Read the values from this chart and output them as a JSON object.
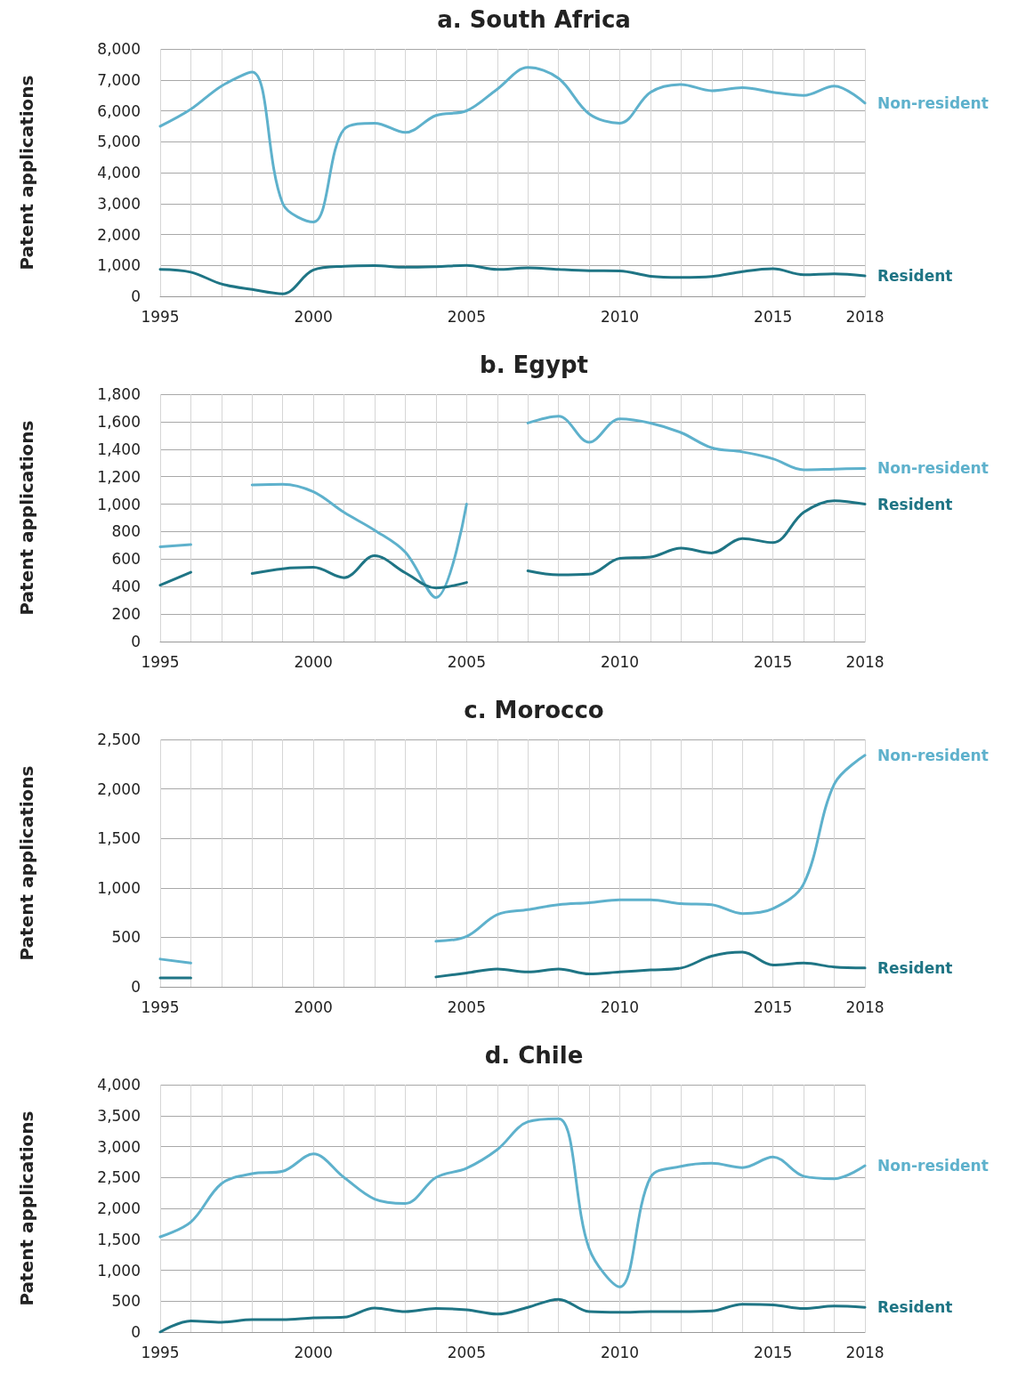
{
  "chart_data": [
    {
      "type": "line",
      "title": "a. South Africa",
      "ylabel": "Patent applications",
      "x": [
        1995,
        1996,
        1997,
        1998,
        1999,
        2000,
        2001,
        2002,
        2003,
        2004,
        2005,
        2006,
        2007,
        2008,
        2009,
        2010,
        2011,
        2012,
        2013,
        2014,
        2015,
        2016,
        2017,
        2018
      ],
      "xlim": [
        1995,
        2018
      ],
      "xticks": [
        1995,
        {
          "value": 1996,
          "label": null
        },
        {
          "value": 1997,
          "label": null
        },
        {
          "value": 1998,
          "label": null
        },
        {
          "value": 1999,
          "label": null
        },
        2000,
        {
          "value": 2001,
          "label": null
        },
        {
          "value": 2002,
          "label": null
        },
        {
          "value": 2003,
          "label": null
        },
        {
          "value": 2004,
          "label": null
        },
        2005,
        {
          "value": 2006,
          "label": null
        },
        {
          "value": 2007,
          "label": null
        },
        {
          "value": 2008,
          "label": null
        },
        {
          "value": 2009,
          "label": null
        },
        2010,
        {
          "value": 2011,
          "label": null
        },
        {
          "value": 2012,
          "label": null
        },
        {
          "value": 2013,
          "label": null
        },
        {
          "value": 2014,
          "label": null
        },
        2015,
        {
          "value": 2016,
          "label": null
        },
        {
          "value": 2017,
          "label": null
        },
        2018
      ],
      "ylim": [
        0,
        8000
      ],
      "yticks": [
        0,
        {
          "value": 1000,
          "label": "1,000"
        },
        {
          "value": 2000,
          "label": "2,000"
        },
        {
          "value": 3000,
          "label": "3,000"
        },
        {
          "value": 4000,
          "label": "4,000"
        },
        {
          "value": 5000,
          "label": "5,000"
        },
        {
          "value": 6000,
          "label": "6,000"
        },
        {
          "value": 7000,
          "label": "7,000"
        },
        {
          "value": 8000,
          "label": "8,000"
        }
      ],
      "grid": true,
      "legend": false,
      "marker": "none",
      "line_style": "solid",
      "series": [
        {
          "name": "Non-resident",
          "color": "#5eb1cc",
          "values": [
            5500,
            6050,
            6800,
            7250,
            3000,
            2400,
            5400,
            5600,
            5300,
            5850,
            6000,
            6700,
            7400,
            7050,
            5900,
            5600,
            6600,
            6850,
            6650,
            6750,
            6600,
            6500,
            6800,
            6250
          ]
        },
        {
          "name": "Resident",
          "color": "#1f7585",
          "values": [
            870,
            780,
            400,
            220,
            80,
            850,
            970,
            990,
            940,
            960,
            1000,
            870,
            920,
            870,
            830,
            820,
            650,
            610,
            640,
            800,
            890,
            700,
            730,
            660
          ]
        }
      ]
    },
    {
      "type": "line",
      "title": "b. Egypt",
      "ylabel": "Patent applications",
      "x": [
        1995,
        1996,
        1997,
        1998,
        1999,
        2000,
        2001,
        2002,
        2003,
        2004,
        2005,
        2006,
        2007,
        2008,
        2009,
        2010,
        2011,
        2012,
        2013,
        2014,
        2015,
        2016,
        2017,
        2018
      ],
      "xlim": [
        1995,
        2018
      ],
      "xticks": [
        1995,
        {
          "value": 1996,
          "label": null
        },
        {
          "value": 1997,
          "label": null
        },
        {
          "value": 1998,
          "label": null
        },
        {
          "value": 1999,
          "label": null
        },
        2000,
        {
          "value": 2001,
          "label": null
        },
        {
          "value": 2002,
          "label": null
        },
        {
          "value": 2003,
          "label": null
        },
        {
          "value": 2004,
          "label": null
        },
        2005,
        {
          "value": 2006,
          "label": null
        },
        {
          "value": 2007,
          "label": null
        },
        {
          "value": 2008,
          "label": null
        },
        {
          "value": 2009,
          "label": null
        },
        2010,
        {
          "value": 2011,
          "label": null
        },
        {
          "value": 2012,
          "label": null
        },
        {
          "value": 2013,
          "label": null
        },
        {
          "value": 2014,
          "label": null
        },
        2015,
        {
          "value": 2016,
          "label": null
        },
        {
          "value": 2017,
          "label": null
        },
        2018
      ],
      "ylim": [
        0,
        1800
      ],
      "yticks": [
        0,
        200,
        400,
        600,
        800,
        {
          "value": 1000,
          "label": "1,000"
        },
        {
          "value": 1200,
          "label": "1,200"
        },
        {
          "value": 1400,
          "label": "1,400"
        },
        {
          "value": 1600,
          "label": "1,600"
        },
        {
          "value": 1800,
          "label": "1,800"
        }
      ],
      "grid": true,
      "legend": false,
      "marker": "none",
      "line_style": "solid",
      "series": [
        {
          "name": "Non-resident",
          "color": "#5eb1cc",
          "values": [
            690,
            705,
            null,
            1140,
            1145,
            1090,
            940,
            810,
            650,
            320,
            1000,
            null,
            1590,
            1640,
            1450,
            1620,
            1590,
            1520,
            1410,
            1380,
            1330,
            1250,
            1255,
            1260
          ]
        },
        {
          "name": "Resident",
          "color": "#1f7585",
          "values": [
            410,
            505,
            null,
            495,
            530,
            540,
            465,
            625,
            500,
            390,
            430,
            null,
            515,
            485,
            490,
            605,
            615,
            680,
            645,
            750,
            720,
            940,
            1025,
            1000
          ]
        }
      ]
    },
    {
      "type": "line",
      "title": "c. Morocco",
      "ylabel": "Patent applications",
      "x": [
        1995,
        1996,
        1997,
        1998,
        1999,
        2000,
        2001,
        2002,
        2003,
        2004,
        2005,
        2006,
        2007,
        2008,
        2009,
        2010,
        2011,
        2012,
        2013,
        2014,
        2015,
        2016,
        2017,
        2018
      ],
      "xlim": [
        1995,
        2018
      ],
      "xticks": [
        1995,
        {
          "value": 1996,
          "label": null
        },
        {
          "value": 1997,
          "label": null
        },
        {
          "value": 1998,
          "label": null
        },
        {
          "value": 1999,
          "label": null
        },
        2000,
        {
          "value": 2001,
          "label": null
        },
        {
          "value": 2002,
          "label": null
        },
        {
          "value": 2003,
          "label": null
        },
        {
          "value": 2004,
          "label": null
        },
        2005,
        {
          "value": 2006,
          "label": null
        },
        {
          "value": 2007,
          "label": null
        },
        {
          "value": 2008,
          "label": null
        },
        {
          "value": 2009,
          "label": null
        },
        2010,
        {
          "value": 2011,
          "label": null
        },
        {
          "value": 2012,
          "label": null
        },
        {
          "value": 2013,
          "label": null
        },
        {
          "value": 2014,
          "label": null
        },
        2015,
        {
          "value": 2016,
          "label": null
        },
        {
          "value": 2017,
          "label": null
        },
        2018
      ],
      "ylim": [
        0,
        2500
      ],
      "yticks": [
        0,
        500,
        {
          "value": 1000,
          "label": "1,000"
        },
        {
          "value": 1500,
          "label": "1,500"
        },
        {
          "value": 2000,
          "label": "2,000"
        },
        {
          "value": 2500,
          "label": "2,500"
        }
      ],
      "grid": true,
      "legend": false,
      "marker": "none",
      "line_style": "solid",
      "series": [
        {
          "name": "Non-resident",
          "color": "#5eb1cc",
          "values": [
            280,
            240,
            null,
            null,
            null,
            null,
            null,
            null,
            null,
            460,
            510,
            730,
            780,
            830,
            850,
            880,
            880,
            840,
            830,
            740,
            790,
            1040,
            2050,
            2340
          ]
        },
        {
          "name": "Resident",
          "color": "#1f7585",
          "values": [
            90,
            90,
            null,
            null,
            null,
            null,
            null,
            null,
            null,
            100,
            140,
            180,
            150,
            180,
            130,
            150,
            170,
            190,
            310,
            350,
            220,
            240,
            200,
            190
          ]
        }
      ]
    },
    {
      "type": "line",
      "title": "d. Chile",
      "ylabel": "Patent applications",
      "x": [
        1995,
        1996,
        1997,
        1998,
        1999,
        2000,
        2001,
        2002,
        2003,
        2004,
        2005,
        2006,
        2007,
        2008,
        2009,
        2010,
        2011,
        2012,
        2013,
        2014,
        2015,
        2016,
        2017,
        2018
      ],
      "xlim": [
        1995,
        2018
      ],
      "xticks": [
        1995,
        {
          "value": 1996,
          "label": null
        },
        {
          "value": 1997,
          "label": null
        },
        {
          "value": 1998,
          "label": null
        },
        {
          "value": 1999,
          "label": null
        },
        2000,
        {
          "value": 2001,
          "label": null
        },
        {
          "value": 2002,
          "label": null
        },
        {
          "value": 2003,
          "label": null
        },
        {
          "value": 2004,
          "label": null
        },
        2005,
        {
          "value": 2006,
          "label": null
        },
        {
          "value": 2007,
          "label": null
        },
        {
          "value": 2008,
          "label": null
        },
        {
          "value": 2009,
          "label": null
        },
        2010,
        {
          "value": 2011,
          "label": null
        },
        {
          "value": 2012,
          "label": null
        },
        {
          "value": 2013,
          "label": null
        },
        {
          "value": 2014,
          "label": null
        },
        2015,
        {
          "value": 2016,
          "label": null
        },
        {
          "value": 2017,
          "label": null
        },
        2018
      ],
      "ylim": [
        0,
        4000
      ],
      "yticks": [
        0,
        500,
        {
          "value": 1000,
          "label": "1,000"
        },
        {
          "value": 1500,
          "label": "1,500"
        },
        {
          "value": 2000,
          "label": "2,000"
        },
        {
          "value": 2500,
          "label": "2,500"
        },
        {
          "value": 3000,
          "label": "3,000"
        },
        {
          "value": 3500,
          "label": "3,500"
        },
        {
          "value": 4000,
          "label": "4,000"
        }
      ],
      "grid": true,
      "legend": false,
      "marker": "none",
      "line_style": "solid",
      "series": [
        {
          "name": "Non-resident",
          "color": "#5eb1cc",
          "values": [
            1540,
            1780,
            2400,
            2560,
            2600,
            2880,
            2500,
            2150,
            2080,
            2500,
            2650,
            2950,
            3400,
            3450,
            1350,
            730,
            2500,
            2680,
            2730,
            2660,
            2830,
            2520,
            2480,
            2690
          ]
        },
        {
          "name": "Resident",
          "color": "#1f7585",
          "values": [
            0,
            180,
            160,
            200,
            200,
            230,
            240,
            390,
            330,
            380,
            360,
            290,
            400,
            530,
            330,
            320,
            330,
            330,
            340,
            450,
            440,
            380,
            420,
            400
          ]
        }
      ]
    }
  ]
}
